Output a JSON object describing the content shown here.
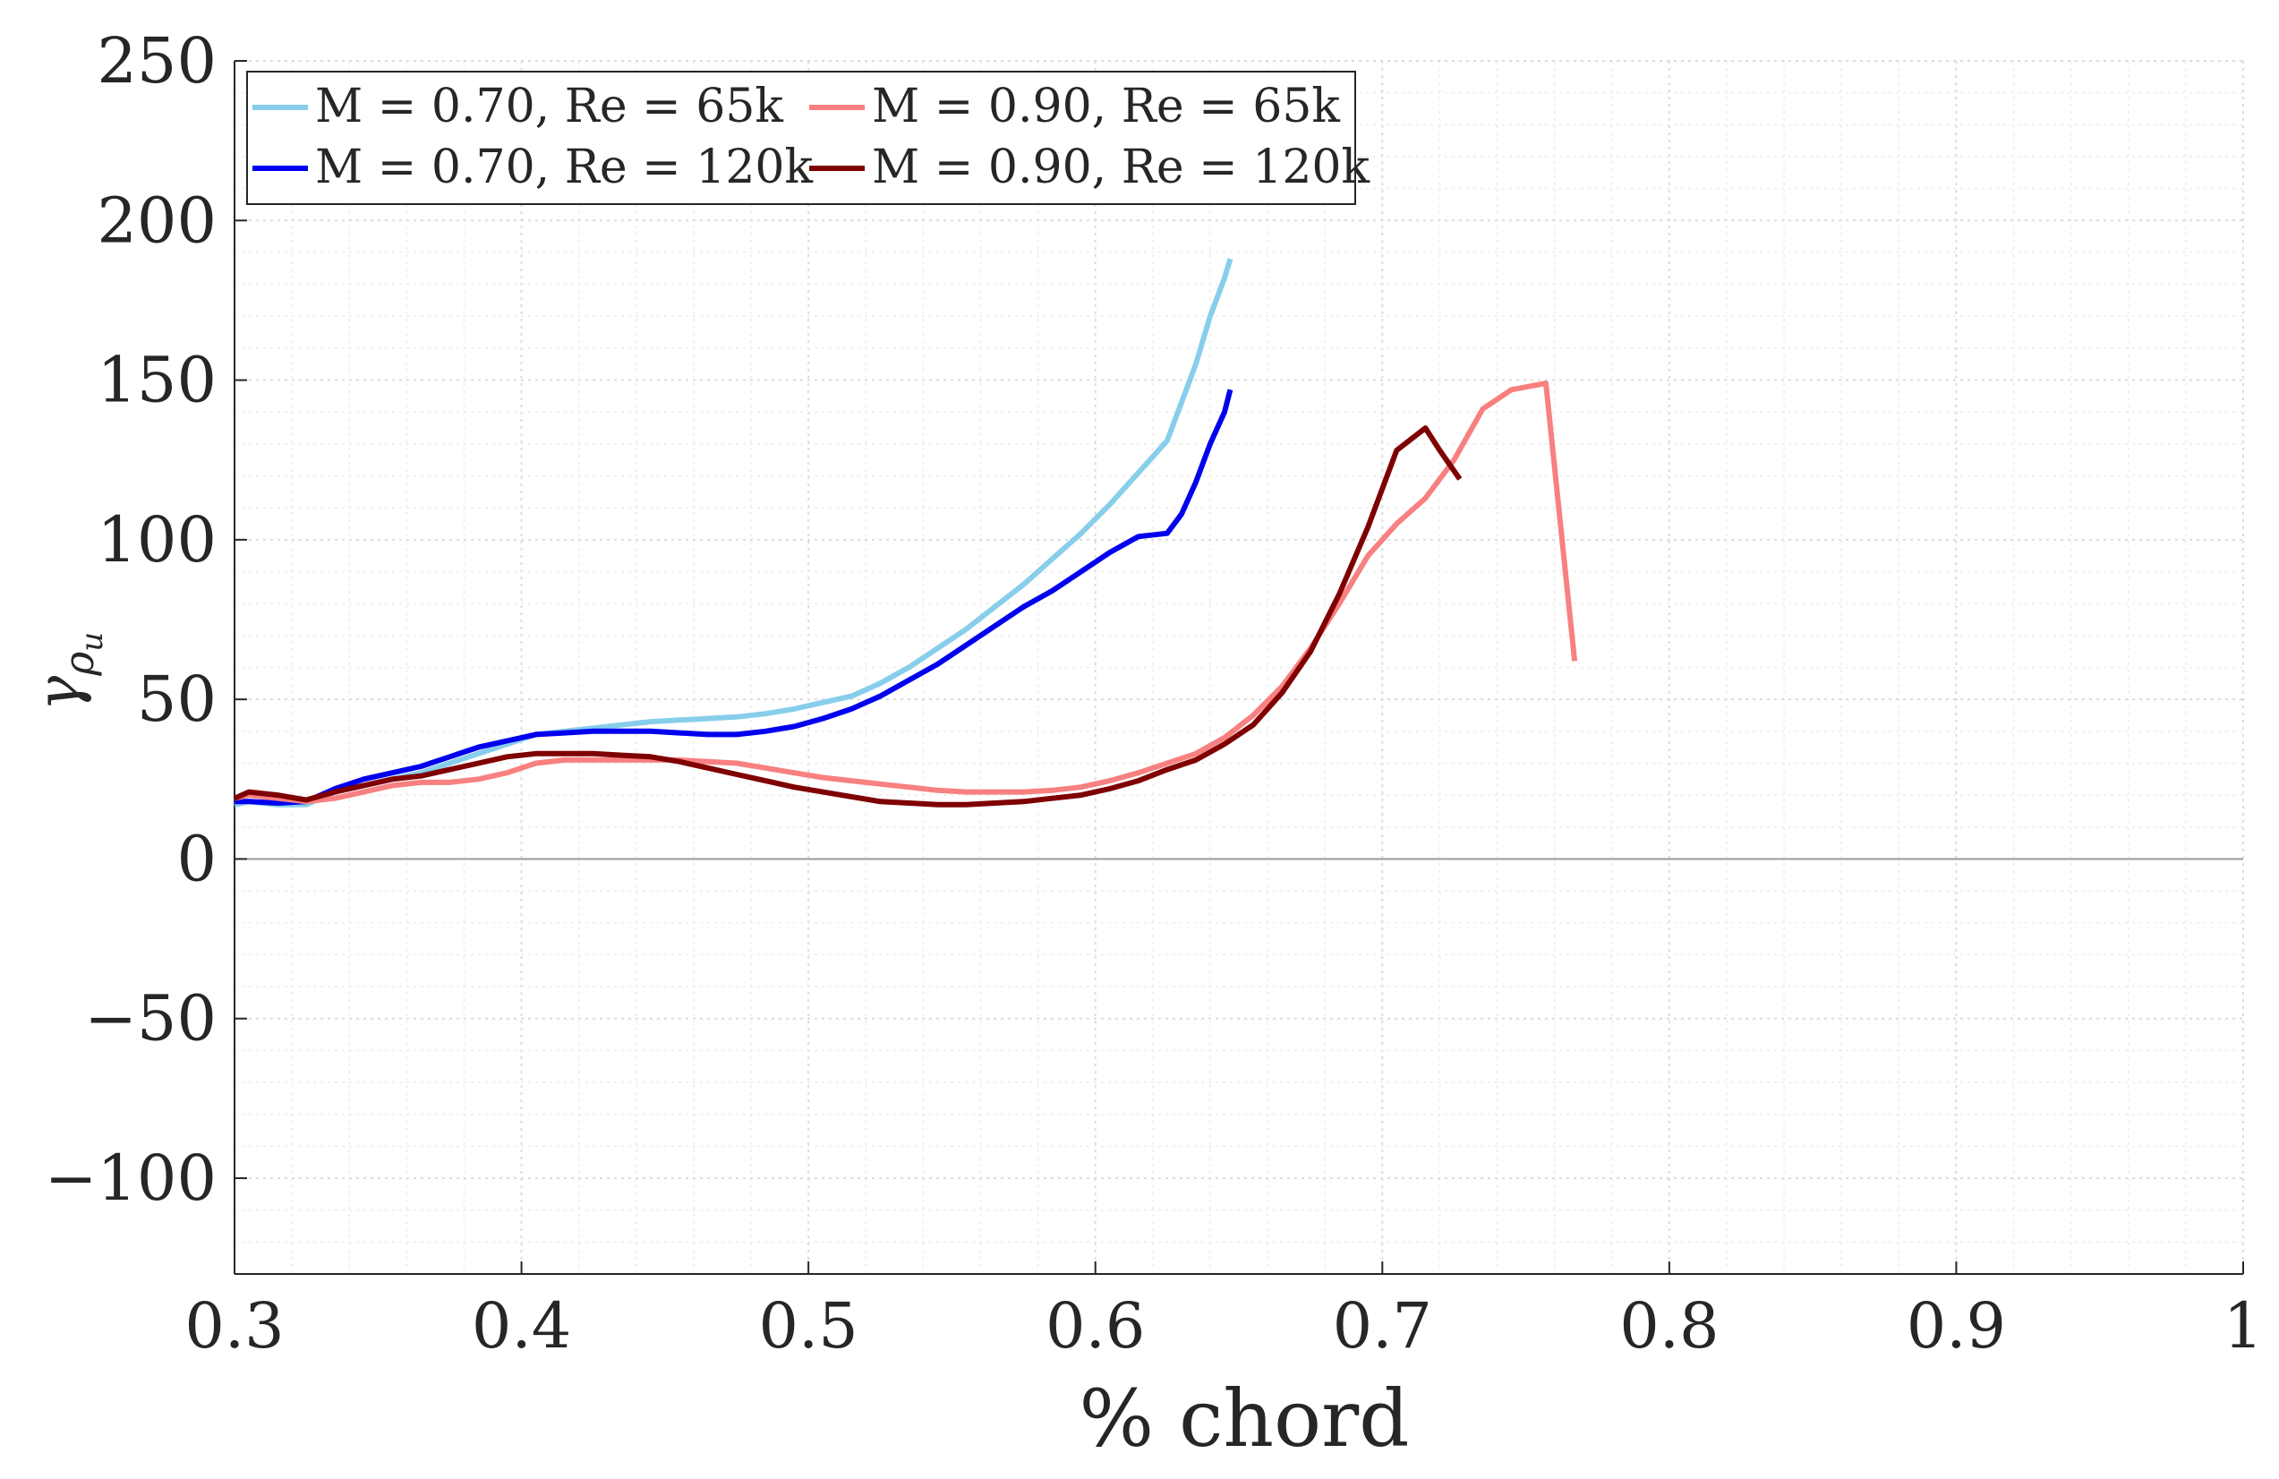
{
  "chart_data": {
    "type": "line",
    "title": "",
    "xlabel": "% chord",
    "ylabel": "γ_ρu",
    "ylabel_main": "γ",
    "ylabel_sub": "ρ",
    "ylabel_subsub": "u",
    "xlim": [
      0.3,
      1.0
    ],
    "ylim": [
      -130,
      250
    ],
    "xticks": [
      0.3,
      0.4,
      0.5,
      0.6,
      0.7,
      0.8,
      0.9,
      1.0
    ],
    "xtick_labels": [
      "0.3",
      "0.4",
      "0.5",
      "0.6",
      "0.7",
      "0.8",
      "0.9",
      "1"
    ],
    "yticks": [
      -100,
      -50,
      0,
      50,
      100,
      150,
      200,
      250
    ],
    "ytick_labels": [
      "−100",
      "−50",
      "0",
      "50",
      "100",
      "150",
      "200",
      "250"
    ],
    "grid": true,
    "legend_position": "top-left",
    "series": [
      {
        "name": "M = 0.70, Re = 65k",
        "color": "#87CEEB",
        "x": [
          0.3,
          0.305,
          0.315,
          0.325,
          0.335,
          0.345,
          0.355,
          0.365,
          0.375,
          0.385,
          0.395,
          0.405,
          0.415,
          0.425,
          0.435,
          0.445,
          0.455,
          0.465,
          0.475,
          0.485,
          0.495,
          0.505,
          0.515,
          0.525,
          0.535,
          0.545,
          0.555,
          0.565,
          0.575,
          0.585,
          0.595,
          0.605,
          0.615,
          0.625,
          0.635,
          0.64,
          0.645,
          0.647
        ],
        "y": [
          17,
          18,
          17,
          17,
          21,
          23,
          25,
          27,
          30,
          33,
          36,
          39,
          40,
          41,
          42,
          43,
          43.5,
          44,
          44.5,
          45.5,
          47,
          49,
          51,
          55,
          60,
          66,
          72,
          79,
          86,
          94,
          102,
          111,
          121,
          131,
          155,
          170,
          182,
          188
        ]
      },
      {
        "name": "M = 0.70, Re = 120k",
        "color": "#0000EE",
        "x": [
          0.3,
          0.305,
          0.315,
          0.325,
          0.335,
          0.345,
          0.355,
          0.365,
          0.375,
          0.385,
          0.395,
          0.405,
          0.415,
          0.425,
          0.435,
          0.445,
          0.455,
          0.465,
          0.475,
          0.485,
          0.495,
          0.505,
          0.515,
          0.525,
          0.535,
          0.545,
          0.555,
          0.565,
          0.575,
          0.585,
          0.595,
          0.605,
          0.615,
          0.625,
          0.63,
          0.635,
          0.64,
          0.645,
          0.647
        ],
        "y": [
          18,
          18,
          17.5,
          18,
          22,
          25,
          27,
          29,
          32,
          35,
          37,
          39,
          39.5,
          40,
          40,
          40,
          39.5,
          39,
          39,
          40,
          41.5,
          44,
          47,
          51,
          56,
          61,
          67,
          73,
          79,
          84,
          90,
          96,
          101,
          102,
          108,
          118,
          130,
          140,
          147
        ]
      },
      {
        "name": "M = 0.90, Re = 65k",
        "color": "#F88080",
        "x": [
          0.3,
          0.305,
          0.315,
          0.325,
          0.335,
          0.345,
          0.355,
          0.365,
          0.375,
          0.385,
          0.395,
          0.405,
          0.415,
          0.425,
          0.435,
          0.445,
          0.455,
          0.465,
          0.475,
          0.485,
          0.495,
          0.505,
          0.515,
          0.525,
          0.535,
          0.545,
          0.555,
          0.565,
          0.575,
          0.585,
          0.595,
          0.605,
          0.615,
          0.625,
          0.635,
          0.645,
          0.655,
          0.665,
          0.675,
          0.685,
          0.695,
          0.705,
          0.715,
          0.725,
          0.735,
          0.745,
          0.757,
          0.767
        ],
        "y": [
          19,
          20,
          19,
          18,
          19,
          21,
          23,
          24,
          24,
          25,
          27,
          30,
          31,
          31,
          31,
          31,
          31,
          30.5,
          30,
          28.5,
          27,
          25.5,
          24.5,
          23.5,
          22.5,
          21.5,
          21,
          21,
          21,
          21.5,
          22.5,
          24.5,
          27,
          30,
          33,
          38,
          45,
          54,
          66,
          80,
          95,
          105,
          113,
          125,
          141,
          147,
          149,
          62
        ]
      },
      {
        "name": "M = 0.90, Re = 120k",
        "color": "#7F0000",
        "x": [
          0.3,
          0.305,
          0.315,
          0.325,
          0.335,
          0.345,
          0.355,
          0.365,
          0.375,
          0.385,
          0.395,
          0.405,
          0.415,
          0.425,
          0.435,
          0.445,
          0.455,
          0.465,
          0.475,
          0.485,
          0.495,
          0.505,
          0.515,
          0.525,
          0.535,
          0.545,
          0.555,
          0.565,
          0.575,
          0.585,
          0.595,
          0.605,
          0.615,
          0.625,
          0.635,
          0.645,
          0.655,
          0.665,
          0.675,
          0.685,
          0.695,
          0.705,
          0.715,
          0.72,
          0.727
        ],
        "y": [
          19,
          21,
          20,
          18.5,
          21,
          23,
          25,
          26,
          28,
          30,
          32,
          33,
          33,
          33,
          32.5,
          32,
          30.5,
          28.5,
          26.5,
          24.5,
          22.5,
          21,
          19.5,
          18,
          17.5,
          17,
          17,
          17.5,
          18,
          19,
          20,
          22,
          24.5,
          28,
          31,
          36,
          42,
          52,
          65,
          83,
          104,
          128,
          135,
          128,
          119
        ]
      }
    ]
  }
}
